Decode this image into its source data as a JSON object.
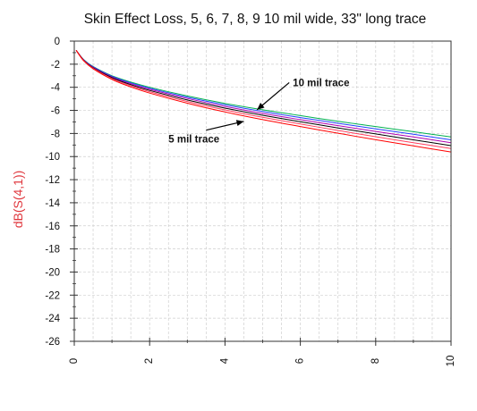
{
  "chart_data": {
    "type": "line",
    "title": "Skin Effect Loss, 5, 6, 7, 8, 9 10 mil wide, 33\" long trace",
    "xlabel": "",
    "ylabel": "dB(S(4,1))",
    "xlim": [
      0,
      10
    ],
    "ylim": [
      -26,
      0
    ],
    "xticks": [
      0,
      2,
      4,
      6,
      8,
      10
    ],
    "yticks": [
      0,
      -2,
      -4,
      -6,
      -8,
      -10,
      -12,
      -14,
      -16,
      -18,
      -20,
      -22,
      -24,
      -26
    ],
    "grid": true,
    "x": [
      0.05,
      0.25,
      0.5,
      1,
      1.5,
      2,
      3,
      4,
      5,
      6,
      7,
      8,
      9,
      10
    ],
    "series": [
      {
        "color": "#00b050",
        "values": [
          -0.8,
          -1.6,
          -2.2,
          -3.0,
          -3.55,
          -4.0,
          -4.75,
          -5.4,
          -5.95,
          -6.45,
          -6.95,
          -7.4,
          -7.85,
          -8.3
        ]
      },
      {
        "color": "#2040ff",
        "values": [
          -0.8,
          -1.62,
          -2.23,
          -3.05,
          -3.62,
          -4.08,
          -4.85,
          -5.52,
          -6.1,
          -6.62,
          -7.12,
          -7.6,
          -8.07,
          -8.55
        ]
      },
      {
        "color": "#b000b0",
        "values": [
          -0.8,
          -1.64,
          -2.27,
          -3.11,
          -3.7,
          -4.17,
          -4.97,
          -5.66,
          -6.26,
          -6.8,
          -7.32,
          -7.82,
          -8.3,
          -8.8
        ]
      },
      {
        "color": "#000000",
        "values": [
          -0.8,
          -1.66,
          -2.31,
          -3.17,
          -3.78,
          -4.27,
          -5.1,
          -5.8,
          -6.42,
          -6.98,
          -7.52,
          -8.04,
          -8.55,
          -9.05
        ]
      },
      {
        "color": "#ff4060",
        "values": [
          -0.8,
          -1.68,
          -2.35,
          -3.24,
          -3.87,
          -4.38,
          -5.23,
          -5.96,
          -6.6,
          -7.18,
          -7.74,
          -8.28,
          -8.8,
          -9.3
        ]
      },
      {
        "color": "#ff0000",
        "values": [
          -0.8,
          -1.71,
          -2.4,
          -3.32,
          -3.97,
          -4.5,
          -5.38,
          -6.14,
          -6.8,
          -7.4,
          -7.98,
          -8.54,
          -9.08,
          -9.6
        ]
      }
    ],
    "annotations": [
      {
        "text": "10 mil trace",
        "x": 5.8,
        "y": -3.9,
        "arrow_to": [
          4.85,
          -5.95
        ]
      },
      {
        "text": "5 mil trace",
        "x": 2.5,
        "y": -8.8,
        "arrow_to": [
          4.5,
          -6.95
        ]
      }
    ]
  }
}
